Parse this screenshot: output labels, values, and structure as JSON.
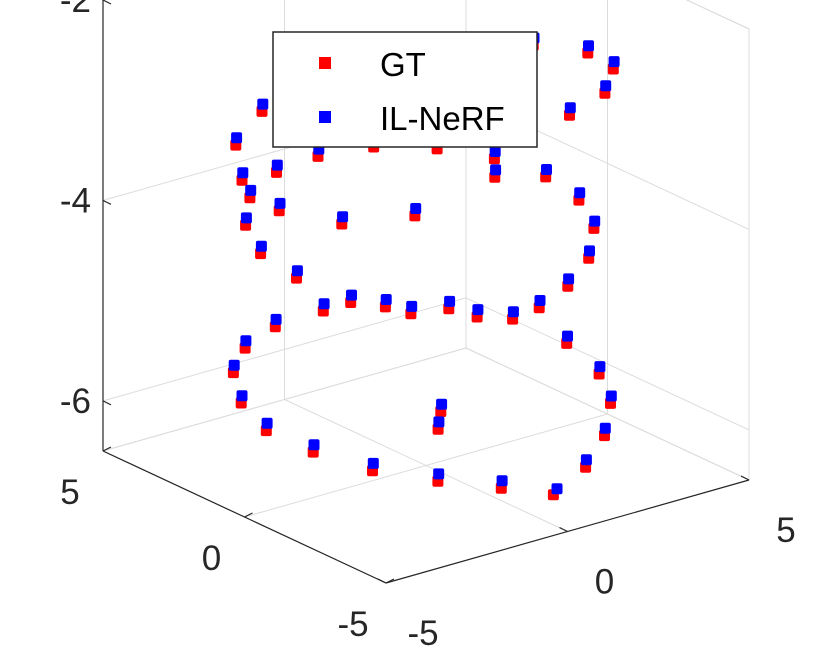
{
  "chart_data": {
    "type": "scatter",
    "projection": "3d",
    "grid": true,
    "legend_position": "top",
    "xlim": [
      -5,
      5
    ],
    "ylim": [
      -5,
      5
    ],
    "zlim": [
      -6.5,
      -2
    ],
    "x_ticks": [
      -5,
      0,
      5
    ],
    "y_ticks": [
      -5,
      0,
      5
    ],
    "z_ticks": [
      -2,
      -4,
      -6
    ],
    "x_tick_labels": [
      "-5",
      "0",
      "5"
    ],
    "y_tick_labels": [
      "-5",
      "0",
      "5"
    ],
    "z_tick_labels": [
      "-2",
      "-4",
      "-6"
    ],
    "series": [
      {
        "name": "GT",
        "color": "#ff0000",
        "marker": "square",
        "points": [
          [
            0.0,
            -4.5,
            -6.2
          ],
          [
            1.2,
            -4.1,
            -6.1
          ],
          [
            2.5,
            -3.1,
            -6.05
          ],
          [
            3.6,
            -1.9,
            -6.0
          ],
          [
            4.3,
            -0.6,
            -5.95
          ],
          [
            4.5,
            0.8,
            -5.85
          ],
          [
            4.1,
            2.2,
            -5.75
          ],
          [
            3.2,
            3.3,
            -5.7
          ],
          [
            2.0,
            4.0,
            -5.65
          ],
          [
            0.6,
            4.4,
            -5.6
          ],
          [
            -0.8,
            4.3,
            -5.6
          ],
          [
            -2.1,
            3.7,
            -5.6
          ],
          [
            -3.2,
            2.7,
            -5.6
          ],
          [
            -4.0,
            1.4,
            -5.65
          ],
          [
            -4.4,
            0.0,
            -5.7
          ],
          [
            -4.2,
            -1.4,
            -5.75
          ],
          [
            -3.5,
            -2.6,
            -5.85
          ],
          [
            -2.4,
            -3.5,
            -5.95
          ],
          [
            -1.2,
            -4.2,
            -6.05
          ],
          [
            1.5,
            1.4,
            -6.3
          ],
          [
            0.8,
            0.6,
            -6.3
          ],
          [
            0.0,
            -4.0,
            -4.4
          ],
          [
            1.1,
            -3.6,
            -4.35
          ],
          [
            2.3,
            -2.8,
            -4.3
          ],
          [
            3.3,
            -1.7,
            -4.25
          ],
          [
            3.9,
            -0.4,
            -4.2
          ],
          [
            4.0,
            0.9,
            -4.15
          ],
          [
            3.6,
            2.2,
            -4.1
          ],
          [
            2.8,
            3.2,
            -4.05
          ],
          [
            1.6,
            3.9,
            -4.0
          ],
          [
            0.3,
            4.2,
            -4.0
          ],
          [
            -1.0,
            4.0,
            -4.0
          ],
          [
            -2.2,
            3.4,
            -4.05
          ],
          [
            -3.1,
            2.4,
            -4.1
          ],
          [
            -3.7,
            1.1,
            -4.15
          ],
          [
            -3.8,
            -0.3,
            -4.2
          ],
          [
            -3.4,
            -1.7,
            -4.3
          ],
          [
            -2.6,
            -2.8,
            -4.35
          ],
          [
            -1.4,
            -3.6,
            -4.4
          ],
          [
            0.6,
            -4.3,
            -2.5
          ],
          [
            2.2,
            -3.5,
            -2.55
          ],
          [
            3.6,
            -2.0,
            -2.65
          ],
          [
            4.3,
            -0.2,
            -2.8
          ],
          [
            4.2,
            1.6,
            -2.95
          ],
          [
            3.4,
            3.1,
            -3.1
          ],
          [
            2.0,
            4.1,
            -3.2
          ],
          [
            0.3,
            4.4,
            -3.3
          ],
          [
            -1.4,
            4.0,
            -3.35
          ],
          [
            -2.9,
            3.0,
            -3.4
          ],
          [
            -3.9,
            1.5,
            -3.45
          ],
          [
            -4.2,
            -0.2,
            -3.5
          ],
          [
            -3.8,
            -1.9,
            -3.45
          ],
          [
            -2.8,
            -3.2,
            -3.3
          ],
          [
            -1.3,
            -4.1,
            -2.95
          ]
        ]
      },
      {
        "name": "IL-NeRF",
        "color": "#0000ff",
        "marker": "square",
        "points": [
          [
            0.1,
            -4.5,
            -6.15
          ],
          [
            1.3,
            -4.0,
            -6.05
          ],
          [
            2.6,
            -3.0,
            -6.0
          ],
          [
            3.7,
            -1.8,
            -5.95
          ],
          [
            4.4,
            -0.5,
            -5.9
          ],
          [
            4.6,
            0.9,
            -5.8
          ],
          [
            4.2,
            2.3,
            -5.7
          ],
          [
            3.3,
            3.4,
            -5.65
          ],
          [
            2.1,
            4.1,
            -5.6
          ],
          [
            0.7,
            4.5,
            -5.55
          ],
          [
            -0.7,
            4.4,
            -5.55
          ],
          [
            -2.0,
            3.8,
            -5.55
          ],
          [
            -3.1,
            2.8,
            -5.55
          ],
          [
            -3.9,
            1.5,
            -5.6
          ],
          [
            -4.3,
            0.1,
            -5.65
          ],
          [
            -4.1,
            -1.3,
            -5.7
          ],
          [
            -3.4,
            -2.5,
            -5.8
          ],
          [
            -2.3,
            -3.4,
            -5.9
          ],
          [
            -1.1,
            -4.1,
            -6.0
          ],
          [
            1.6,
            1.5,
            -6.25
          ],
          [
            0.9,
            0.7,
            -6.25
          ],
          [
            0.1,
            -3.9,
            -4.35
          ],
          [
            1.2,
            -3.5,
            -4.3
          ],
          [
            2.4,
            -2.7,
            -4.25
          ],
          [
            3.4,
            -1.6,
            -4.2
          ],
          [
            4.0,
            -0.3,
            -4.15
          ],
          [
            4.1,
            1.0,
            -4.1
          ],
          [
            3.7,
            2.3,
            -4.05
          ],
          [
            2.9,
            3.3,
            -4.0
          ],
          [
            1.7,
            4.0,
            -3.95
          ],
          [
            0.4,
            4.3,
            -3.95
          ],
          [
            -0.9,
            4.1,
            -3.95
          ],
          [
            -2.1,
            3.5,
            -4.0
          ],
          [
            -3.0,
            2.5,
            -4.05
          ],
          [
            -3.6,
            1.2,
            -4.1
          ],
          [
            -3.7,
            -0.2,
            -4.15
          ],
          [
            -3.3,
            -1.6,
            -4.25
          ],
          [
            -2.5,
            -2.7,
            -4.3
          ],
          [
            -1.3,
            -3.5,
            -4.35
          ],
          [
            0.7,
            -4.2,
            -2.45
          ],
          [
            2.3,
            -3.4,
            -2.5
          ],
          [
            3.7,
            -1.9,
            -2.6
          ],
          [
            4.4,
            -0.1,
            -2.75
          ],
          [
            4.3,
            1.7,
            -2.9
          ],
          [
            3.5,
            3.2,
            -3.05
          ],
          [
            2.1,
            4.2,
            -3.15
          ],
          [
            0.4,
            4.5,
            -3.25
          ],
          [
            -1.3,
            4.1,
            -3.3
          ],
          [
            -2.8,
            3.1,
            -3.35
          ],
          [
            -3.8,
            1.6,
            -3.4
          ],
          [
            -4.1,
            -0.1,
            -3.45
          ],
          [
            -3.7,
            -1.8,
            -3.4
          ],
          [
            -2.7,
            -3.1,
            -3.25
          ],
          [
            -1.2,
            -4.0,
            -2.9
          ]
        ]
      }
    ]
  }
}
